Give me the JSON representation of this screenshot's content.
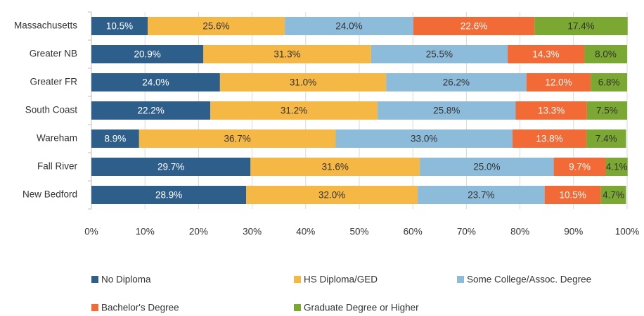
{
  "chart_data": {
    "type": "stacked-bar-horizontal",
    "categories": [
      "Massachusetts",
      "Greater NB",
      "Greater FR",
      "South Coast",
      "Wareham",
      "Fall River",
      "New Bedford"
    ],
    "series": [
      {
        "name": "No Diploma",
        "color": "#2e5f8a",
        "values": [
          10.5,
          20.9,
          24.0,
          22.2,
          8.9,
          29.7,
          28.9
        ],
        "value_labels": [
          "10.5%",
          "20.9%",
          "24.0%",
          "22.2%",
          "8.9%",
          "29.7%",
          "28.9%"
        ]
      },
      {
        "name": "HS Diploma/GED",
        "color": "#f6b844",
        "values": [
          25.6,
          31.3,
          31.0,
          31.2,
          36.7,
          31.6,
          32.0
        ],
        "value_labels": [
          "25.6%",
          "31.3%",
          "31.0%",
          "31.2%",
          "36.7%",
          "31.6%",
          "32.0%"
        ]
      },
      {
        "name": "Some College/Assoc. Degree",
        "color": "#8dbcda",
        "values": [
          24.0,
          25.5,
          26.2,
          25.8,
          33.0,
          25.0,
          23.7
        ],
        "value_labels": [
          "24.0%",
          "25.5%",
          "26.2%",
          "25.8%",
          "33.0%",
          "25.0%",
          "23.7%"
        ]
      },
      {
        "name": "Bachelor's Degree",
        "color": "#f26a35",
        "values": [
          22.6,
          14.3,
          12.0,
          13.3,
          13.8,
          9.7,
          10.5
        ],
        "value_labels": [
          "22.6%",
          "14.3%",
          "12.0%",
          "13.3%",
          "13.8%",
          "9.7%",
          "10.5%"
        ]
      },
      {
        "name": "Graduate Degree or Higher",
        "color": "#7aa832",
        "values": [
          17.4,
          8.0,
          6.8,
          7.5,
          7.4,
          4.1,
          4.7
        ],
        "value_labels": [
          "17.4%",
          "8.0%",
          "6.8%",
          "7.5%",
          "7.4%",
          "4.1%",
          "4.7%"
        ]
      }
    ],
    "xlim": [
      0,
      100
    ],
    "xticks": [
      {
        "value": 0,
        "label": "0%"
      },
      {
        "value": 10,
        "label": "10%"
      },
      {
        "value": 20,
        "label": "20%"
      },
      {
        "value": 30,
        "label": "30%"
      },
      {
        "value": 40,
        "label": "40%"
      },
      {
        "value": 50,
        "label": "50%"
      },
      {
        "value": 60,
        "label": "60%"
      },
      {
        "value": 70,
        "label": "70%"
      },
      {
        "value": 80,
        "label": "80%"
      },
      {
        "value": 90,
        "label": "90%"
      },
      {
        "value": 100,
        "label": "100%"
      }
    ],
    "grid": true,
    "legend": "bottom"
  }
}
